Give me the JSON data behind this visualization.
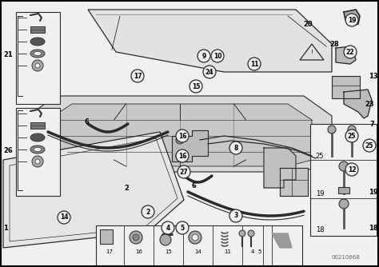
{
  "background_color": "#f0f0f0",
  "border_color": "#000000",
  "fig_width": 4.74,
  "fig_height": 3.34,
  "dpi": 100,
  "watermark": "00210668",
  "line_color": "#2a2a2a",
  "text_color": "#000000",
  "light_gray": "#cccccc",
  "mid_gray": "#aaaaaa",
  "dark_gray": "#555555",
  "very_light": "#e8e8e8"
}
